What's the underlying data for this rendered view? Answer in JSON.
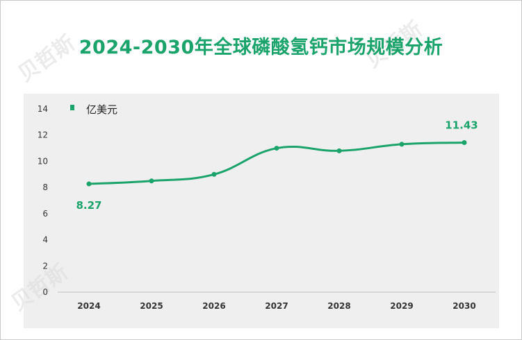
{
  "page": {
    "title": "2024-2030年全球磷酸氢钙市场规模分析"
  },
  "chart_data": {
    "type": "line",
    "title": "2024-2030年全球磷酸氢钙市场规模分析",
    "xlabel": "",
    "ylabel": "",
    "categories": [
      "2024",
      "2025",
      "2026",
      "2027",
      "2028",
      "2029",
      "2030"
    ],
    "series": [
      {
        "name": "亿美元",
        "values": [
          8.27,
          8.5,
          9.0,
          11.0,
          10.8,
          11.3,
          11.43
        ],
        "color": "#1aa36b"
      }
    ],
    "data_labels": [
      {
        "category": "2024",
        "text": "8.27"
      },
      {
        "category": "2030",
        "text": "11.43"
      }
    ],
    "ylim": [
      0,
      14
    ],
    "yticks": [
      "0",
      "2",
      "4",
      "6",
      "8",
      "10",
      "12",
      "14"
    ],
    "grid": false,
    "legend_position": "top-left",
    "smooth": true
  }
}
